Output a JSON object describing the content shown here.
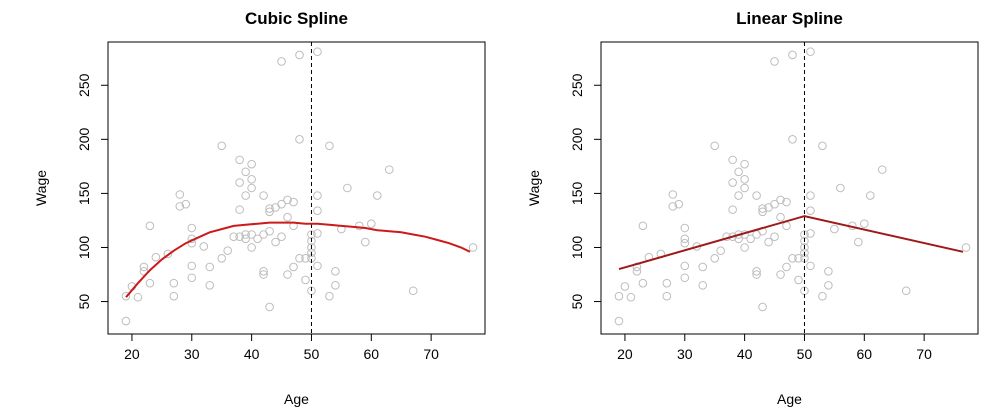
{
  "chart_data": [
    {
      "type": "scatter",
      "title": "Cubic Spline",
      "xlabel": "Age",
      "ylabel": "Wage",
      "xlim": [
        16,
        79
      ],
      "ylim": [
        20,
        290
      ],
      "xticks": [
        20,
        30,
        40,
        50,
        60,
        70
      ],
      "yticks": [
        50,
        100,
        150,
        200,
        250
      ],
      "knot": 50,
      "colors": {
        "points": "#bdbdbd",
        "fit": "#cc1a1a",
        "knot": "#000000"
      },
      "points": [
        [
          19,
          32
        ],
        [
          19,
          55
        ],
        [
          20,
          64
        ],
        [
          21,
          54
        ],
        [
          22,
          78
        ],
        [
          22,
          82
        ],
        [
          23,
          120
        ],
        [
          23,
          67
        ],
        [
          24,
          91
        ],
        [
          26,
          94
        ],
        [
          27,
          67
        ],
        [
          27,
          55
        ],
        [
          28,
          149
        ],
        [
          28,
          138
        ],
        [
          29,
          140
        ],
        [
          30,
          118
        ],
        [
          30,
          108
        ],
        [
          30,
          104
        ],
        [
          30,
          83
        ],
        [
          30,
          72
        ],
        [
          32,
          101
        ],
        [
          33,
          82
        ],
        [
          33,
          65
        ],
        [
          35,
          194
        ],
        [
          35,
          90
        ],
        [
          36,
          97
        ],
        [
          37,
          110
        ],
        [
          38,
          181
        ],
        [
          38,
          160
        ],
        [
          38,
          135
        ],
        [
          38,
          110
        ],
        [
          39,
          170
        ],
        [
          39,
          148
        ],
        [
          39,
          112
        ],
        [
          39,
          108
        ],
        [
          40,
          177
        ],
        [
          40,
          163
        ],
        [
          40,
          155
        ],
        [
          40,
          112
        ],
        [
          40,
          100
        ],
        [
          41,
          108
        ],
        [
          42,
          148
        ],
        [
          42,
          112
        ],
        [
          42,
          78
        ],
        [
          42,
          75
        ],
        [
          43,
          45
        ],
        [
          43,
          133
        ],
        [
          43,
          136
        ],
        [
          43,
          115
        ],
        [
          44,
          137
        ],
        [
          44,
          105
        ],
        [
          45,
          272
        ],
        [
          45,
          140
        ],
        [
          45,
          110
        ],
        [
          46,
          144
        ],
        [
          46,
          128
        ],
        [
          46,
          75
        ],
        [
          47,
          142
        ],
        [
          47,
          120
        ],
        [
          47,
          82
        ],
        [
          48,
          278
        ],
        [
          48,
          200
        ],
        [
          48,
          90
        ],
        [
          49,
          90
        ],
        [
          49,
          70
        ],
        [
          50,
          112
        ],
        [
          50,
          106
        ],
        [
          50,
          100
        ],
        [
          50,
          95
        ],
        [
          50,
          90
        ],
        [
          50,
          60
        ],
        [
          51,
          281
        ],
        [
          51,
          148
        ],
        [
          51,
          134
        ],
        [
          51,
          113
        ],
        [
          51,
          83
        ],
        [
          53,
          194
        ],
        [
          53,
          55
        ],
        [
          54,
          78
        ],
        [
          54,
          65
        ],
        [
          55,
          117
        ],
        [
          56,
          155
        ],
        [
          58,
          120
        ],
        [
          59,
          105
        ],
        [
          60,
          122
        ],
        [
          61,
          148
        ],
        [
          63,
          172
        ],
        [
          67,
          60
        ],
        [
          77,
          100
        ]
      ],
      "fit": [
        [
          19,
          54
        ],
        [
          21,
          67
        ],
        [
          23,
          79
        ],
        [
          25,
          89
        ],
        [
          27,
          97
        ],
        [
          29,
          104
        ],
        [
          31,
          109
        ],
        [
          33,
          114
        ],
        [
          35,
          117
        ],
        [
          37,
          120
        ],
        [
          39,
          121
        ],
        [
          41,
          122
        ],
        [
          43,
          123
        ],
        [
          45,
          123
        ],
        [
          47,
          123
        ],
        [
          49,
          122
        ],
        [
          51,
          122
        ],
        [
          53,
          121
        ],
        [
          55,
          120
        ],
        [
          57,
          119
        ],
        [
          59,
          118
        ],
        [
          61,
          116
        ],
        [
          63,
          115
        ],
        [
          65,
          114
        ],
        [
          67,
          112
        ],
        [
          69,
          110
        ],
        [
          71,
          107
        ],
        [
          73,
          104
        ],
        [
          75,
          100
        ],
        [
          76.5,
          96
        ]
      ]
    },
    {
      "type": "scatter",
      "title": "Linear Spline",
      "xlabel": "Age",
      "ylabel": "Wage",
      "xlim": [
        16,
        79
      ],
      "ylim": [
        20,
        290
      ],
      "xticks": [
        20,
        30,
        40,
        50,
        60,
        70
      ],
      "yticks": [
        50,
        100,
        150,
        200,
        250
      ],
      "knot": 50,
      "colors": {
        "points": "#bdbdbd",
        "fit": "#a01818",
        "knot": "#000000"
      },
      "points": [
        [
          19,
          32
        ],
        [
          19,
          55
        ],
        [
          20,
          64
        ],
        [
          21,
          54
        ],
        [
          22,
          78
        ],
        [
          22,
          82
        ],
        [
          23,
          120
        ],
        [
          23,
          67
        ],
        [
          24,
          91
        ],
        [
          26,
          94
        ],
        [
          27,
          67
        ],
        [
          27,
          55
        ],
        [
          28,
          149
        ],
        [
          28,
          138
        ],
        [
          29,
          140
        ],
        [
          30,
          118
        ],
        [
          30,
          108
        ],
        [
          30,
          104
        ],
        [
          30,
          83
        ],
        [
          30,
          72
        ],
        [
          32,
          101
        ],
        [
          33,
          82
        ],
        [
          33,
          65
        ],
        [
          35,
          194
        ],
        [
          35,
          90
        ],
        [
          36,
          97
        ],
        [
          37,
          110
        ],
        [
          38,
          181
        ],
        [
          38,
          160
        ],
        [
          38,
          135
        ],
        [
          38,
          110
        ],
        [
          39,
          170
        ],
        [
          39,
          148
        ],
        [
          39,
          112
        ],
        [
          39,
          108
        ],
        [
          40,
          177
        ],
        [
          40,
          163
        ],
        [
          40,
          155
        ],
        [
          40,
          112
        ],
        [
          40,
          100
        ],
        [
          41,
          108
        ],
        [
          42,
          148
        ],
        [
          42,
          112
        ],
        [
          42,
          78
        ],
        [
          42,
          75
        ],
        [
          43,
          45
        ],
        [
          43,
          133
        ],
        [
          43,
          136
        ],
        [
          43,
          115
        ],
        [
          44,
          137
        ],
        [
          44,
          105
        ],
        [
          45,
          272
        ],
        [
          45,
          140
        ],
        [
          45,
          110
        ],
        [
          46,
          144
        ],
        [
          46,
          128
        ],
        [
          46,
          75
        ],
        [
          47,
          142
        ],
        [
          47,
          120
        ],
        [
          47,
          82
        ],
        [
          48,
          278
        ],
        [
          48,
          200
        ],
        [
          48,
          90
        ],
        [
          49,
          90
        ],
        [
          49,
          70
        ],
        [
          50,
          112
        ],
        [
          50,
          106
        ],
        [
          50,
          100
        ],
        [
          50,
          95
        ],
        [
          50,
          90
        ],
        [
          50,
          60
        ],
        [
          51,
          281
        ],
        [
          51,
          148
        ],
        [
          51,
          134
        ],
        [
          51,
          113
        ],
        [
          51,
          83
        ],
        [
          53,
          194
        ],
        [
          53,
          55
        ],
        [
          54,
          78
        ],
        [
          54,
          65
        ],
        [
          55,
          117
        ],
        [
          56,
          155
        ],
        [
          58,
          120
        ],
        [
          59,
          105
        ],
        [
          60,
          122
        ],
        [
          61,
          148
        ],
        [
          63,
          172
        ],
        [
          67,
          60
        ],
        [
          77,
          100
        ]
      ],
      "fit": [
        [
          19,
          80
        ],
        [
          50,
          129
        ],
        [
          76.5,
          96
        ]
      ]
    }
  ]
}
